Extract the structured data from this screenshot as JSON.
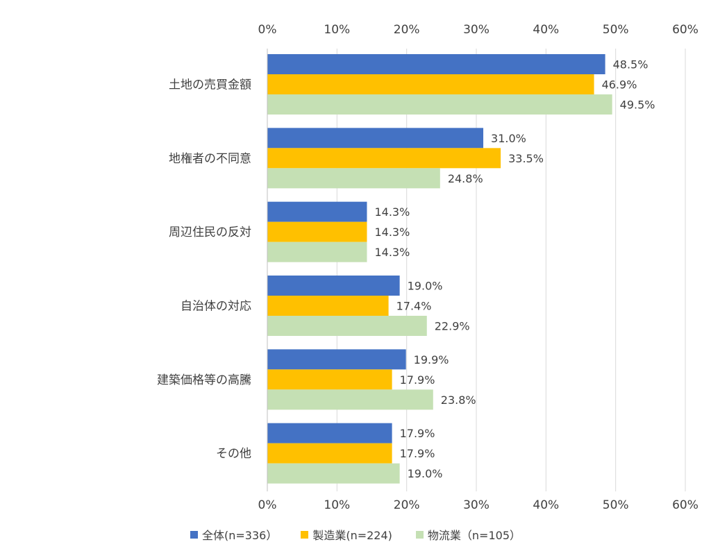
{
  "chart_data": {
    "type": "bar",
    "orientation": "horizontal",
    "categories": [
      "土地の売買金額",
      "地権者の不同意",
      "周辺住民の反対",
      "自治体の対応",
      "建築価格等の高騰",
      "その他"
    ],
    "series": [
      {
        "name": "全体(n=336）",
        "color": "#4472C4",
        "values": [
          48.5,
          31.0,
          14.3,
          19.0,
          19.9,
          17.9
        ],
        "labels": [
          "48.5%",
          "31.0%",
          "14.3%",
          "19.0%",
          "19.9%",
          "17.9%"
        ]
      },
      {
        "name": "製造業(n=224)",
        "color": "#FFC000",
        "values": [
          46.9,
          33.5,
          14.3,
          17.4,
          17.9,
          17.9
        ],
        "labels": [
          "46.9%",
          "33.5%",
          "14.3%",
          "17.4%",
          "17.9%",
          "17.9%"
        ]
      },
      {
        "name": "物流業（n=105）",
        "color": "#C5E0B4",
        "values": [
          49.5,
          24.8,
          14.3,
          22.9,
          23.8,
          19.0
        ],
        "labels": [
          "49.5%",
          "24.8%",
          "14.3%",
          "22.9%",
          "23.8%",
          "19.0%"
        ]
      }
    ],
    "xlim": [
      0,
      60
    ],
    "x_ticks": [
      "0%",
      "10%",
      "20%",
      "30%",
      "40%",
      "50%",
      "60%"
    ],
    "grid": "vertical",
    "legend_position": "bottom",
    "title": "",
    "xlabel": "",
    "ylabel": ""
  }
}
